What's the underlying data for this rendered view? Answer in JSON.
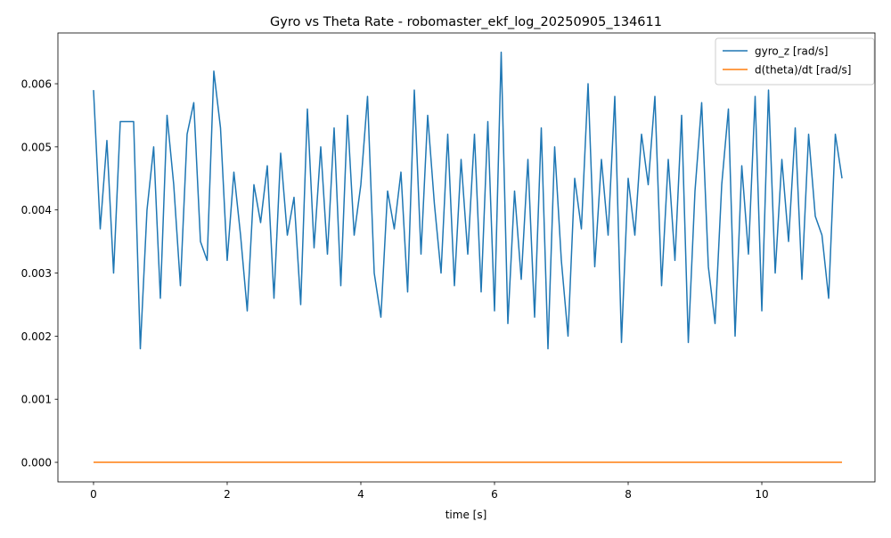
{
  "chart_data": {
    "type": "line",
    "title": "Gyro vs Theta Rate - robomaster_ekf_log_20250905_134611",
    "xlabel": "time [s]",
    "x": [
      0,
      0.1,
      0.2,
      0.3,
      0.4,
      0.5,
      0.6,
      0.7,
      0.8,
      0.9,
      1.0,
      1.1,
      1.2,
      1.3,
      1.4,
      1.5,
      1.6,
      1.7,
      1.8,
      1.9,
      2.0,
      2.1,
      2.2,
      2.3,
      2.4,
      2.5,
      2.6,
      2.7,
      2.8,
      2.9,
      3.0,
      3.1,
      3.2,
      3.3,
      3.4,
      3.5,
      3.6,
      3.7,
      3.8,
      3.9,
      4.0,
      4.1,
      4.2,
      4.3,
      4.4,
      4.5,
      4.6,
      4.7,
      4.8,
      4.9,
      5.0,
      5.1,
      5.2,
      5.3,
      5.4,
      5.5,
      5.6,
      5.7,
      5.8,
      5.9,
      6.0,
      6.1,
      6.2,
      6.3,
      6.4,
      6.5,
      6.6,
      6.7,
      6.8,
      6.9,
      7.0,
      7.1,
      7.2,
      7.3,
      7.4,
      7.5,
      7.6,
      7.7,
      7.8,
      7.9,
      8.0,
      8.1,
      8.2,
      8.3,
      8.4,
      8.5,
      8.6,
      8.7,
      8.8,
      8.9,
      9.0,
      9.1,
      9.2,
      9.3,
      9.4,
      9.5,
      9.6,
      9.7,
      9.8,
      9.9,
      10.0,
      10.1,
      10.2,
      10.3,
      10.4,
      10.5,
      10.6,
      10.7,
      10.8,
      10.9,
      11.0,
      11.1,
      11.2
    ],
    "series": [
      {
        "name": "gyro_z [rad/s]",
        "color": "#1f77b4",
        "values": [
          0.0059,
          0.0037,
          0.0051,
          0.003,
          0.0054,
          0.0054,
          0.0054,
          0.0018,
          0.004,
          0.005,
          0.0026,
          0.0055,
          0.0044,
          0.0028,
          0.0052,
          0.0057,
          0.0035,
          0.0032,
          0.0062,
          0.0053,
          0.0032,
          0.0046,
          0.0036,
          0.0024,
          0.0044,
          0.0038,
          0.0047,
          0.0026,
          0.0049,
          0.0036,
          0.0042,
          0.0025,
          0.0056,
          0.0034,
          0.005,
          0.0033,
          0.0053,
          0.0028,
          0.0055,
          0.0036,
          0.0044,
          0.0058,
          0.003,
          0.0023,
          0.0043,
          0.0037,
          0.0046,
          0.0027,
          0.0059,
          0.0033,
          0.0055,
          0.0041,
          0.003,
          0.0052,
          0.0028,
          0.0048,
          0.0033,
          0.0052,
          0.0027,
          0.0054,
          0.0024,
          0.0065,
          0.0022,
          0.0043,
          0.0029,
          0.0048,
          0.0023,
          0.0053,
          0.0018,
          0.005,
          0.0032,
          0.002,
          0.0045,
          0.0037,
          0.006,
          0.0031,
          0.0048,
          0.0036,
          0.0058,
          0.0019,
          0.0045,
          0.0036,
          0.0052,
          0.0044,
          0.0058,
          0.0028,
          0.0048,
          0.0032,
          0.0055,
          0.0019,
          0.0043,
          0.0057,
          0.0031,
          0.0022,
          0.0044,
          0.0056,
          0.002,
          0.0047,
          0.0033,
          0.0058,
          0.0024,
          0.0059,
          0.003,
          0.0048,
          0.0035,
          0.0053,
          0.0029,
          0.0052,
          0.0039,
          0.0036,
          0.0026,
          0.0052,
          0.0045
        ]
      },
      {
        "name": "d(theta)/dt [rad/s]",
        "color": "#ff7f0e",
        "values": [
          0,
          0,
          0,
          0,
          0,
          0,
          0,
          0,
          0,
          0,
          0,
          0,
          0,
          0,
          0,
          0,
          0,
          0,
          0,
          0,
          0,
          0,
          0,
          0,
          0,
          0,
          0,
          0,
          0,
          0,
          0,
          0,
          0,
          0,
          0,
          0,
          0,
          0,
          0,
          0,
          0,
          0,
          0,
          0,
          0,
          0,
          0,
          0,
          0,
          0,
          0,
          0,
          0,
          0,
          0,
          0,
          0,
          0,
          0,
          0,
          0,
          0,
          0,
          0,
          0,
          0,
          0,
          0,
          0,
          0,
          0,
          0,
          0,
          0,
          0,
          0,
          0,
          0,
          0,
          0,
          0,
          0,
          0,
          0,
          0,
          0,
          0,
          0,
          0,
          0,
          0,
          0,
          0,
          0,
          0,
          0,
          0,
          0,
          0,
          0,
          0,
          0,
          0,
          0,
          0,
          0,
          0,
          0,
          0,
          0,
          0,
          0,
          0
        ]
      }
    ],
    "xlim": [
      -0.533,
      11.693
    ],
    "xticks": [
      0,
      2,
      4,
      6,
      8,
      10
    ],
    "ylim": [
      -0.00031,
      0.006805
    ],
    "yticks": [
      {
        "value": 0,
        "label": "0.000"
      },
      0.001,
      0.002,
      0.003,
      0.004,
      0.005,
      0.006
    ],
    "grid": false,
    "legend": "upper right"
  }
}
